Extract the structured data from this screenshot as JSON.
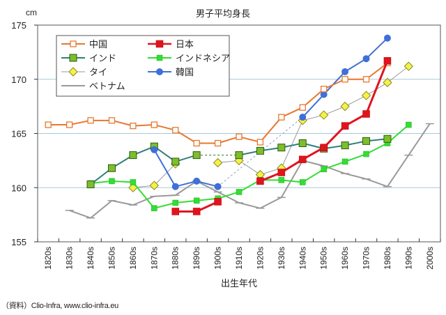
{
  "chart_data": {
    "type": "line",
    "title": "男子平均身長",
    "ylabel": "cm",
    "xlabel": "出生年代",
    "ylim": [
      155,
      175
    ],
    "yticks": [
      155,
      160,
      165,
      170,
      175
    ],
    "grid": true,
    "legend_position": "top-left",
    "categories": [
      "1820s",
      "1830s",
      "1840s",
      "1850s",
      "1860s",
      "1870s",
      "1880s",
      "1890s",
      "1900s",
      "1910s",
      "1920s",
      "1930s",
      "1940s",
      "1950s",
      "1960s",
      "1970s",
      "1980s",
      "1990s",
      "2000s"
    ],
    "series": [
      {
        "name": "中国",
        "color": "#e8772e",
        "marker": "square-open",
        "width": 2,
        "values": [
          165.8,
          165.8,
          166.2,
          166.2,
          165.7,
          165.8,
          165.3,
          164.1,
          164.1,
          164.7,
          164.2,
          166.5,
          167.4,
          169.1,
          170.0,
          170.0,
          171.5,
          null,
          null
        ]
      },
      {
        "name": "日本",
        "color": "#e0141e",
        "marker": "square",
        "width": 3,
        "values": [
          null,
          null,
          null,
          null,
          null,
          null,
          157.8,
          157.8,
          158.7,
          null,
          160.6,
          161.4,
          162.6,
          163.7,
          165.7,
          166.8,
          171.7,
          null,
          null
        ]
      },
      {
        "name": "インド",
        "color": "#2f8079",
        "marker": "square-green",
        "width": 2,
        "values": [
          null,
          null,
          160.3,
          161.8,
          163.0,
          163.8,
          162.4,
          163.0,
          null,
          163.0,
          163.4,
          163.7,
          164.1,
          163.6,
          163.9,
          164.3,
          164.5,
          null,
          null
        ]
      },
      {
        "name": "インドネシア",
        "color": "#33dd33",
        "marker": "square-small",
        "width": 2,
        "values": [
          null,
          null,
          160.4,
          160.6,
          160.5,
          158.1,
          158.6,
          158.8,
          159.0,
          159.6,
          160.7,
          160.7,
          160.5,
          161.7,
          162.4,
          163.1,
          164.1,
          165.8,
          null
        ]
      },
      {
        "name": "タイ",
        "color": "#999999",
        "marker": "diamond",
        "width": 1,
        "values": [
          null,
          null,
          null,
          null,
          160.0,
          160.2,
          162.2,
          null,
          162.3,
          162.5,
          161.2,
          161.8,
          166.2,
          166.7,
          167.5,
          168.5,
          169.7,
          171.2,
          null
        ]
      },
      {
        "name": "韓国",
        "color": "#3f6fd8",
        "marker": "circle",
        "width": 2,
        "values": [
          null,
          null,
          null,
          null,
          null,
          163.5,
          160.1,
          160.6,
          160.1,
          null,
          null,
          null,
          166.5,
          168.6,
          170.7,
          171.9,
          173.8,
          null,
          null
        ]
      },
      {
        "name": "ベトナム",
        "color": "#999999",
        "marker": "dash",
        "width": 2,
        "values": [
          null,
          157.9,
          157.2,
          158.8,
          158.4,
          159.2,
          159.3,
          160.6,
          159.6,
          158.6,
          158.1,
          159.1,
          162.5,
          162.0,
          161.3,
          160.8,
          160.1,
          163.0,
          165.9
        ]
      }
    ],
    "dashed_gap_links": [
      {
        "series": "インド",
        "from": "1890s",
        "to": "1910s"
      },
      {
        "series": "韓国",
        "from": "1900s",
        "to": "1940s"
      }
    ]
  },
  "source": "（資料）Clio-Infra, www.clio-infra.eu"
}
